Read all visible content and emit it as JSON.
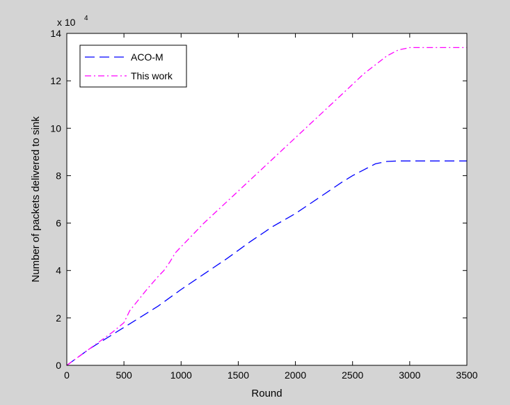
{
  "figure": {
    "background": "#d4d4d4",
    "axes_background": "#ffffff"
  },
  "chart_data": {
    "type": "line",
    "title": "",
    "xlabel": "Round",
    "ylabel": "Number of packets delivered to sink",
    "y_exponent_label": "x 10",
    "y_exponent": "4",
    "xlim": [
      0,
      3500
    ],
    "ylim": [
      0,
      14
    ],
    "xticks": [
      0,
      500,
      1000,
      1500,
      2000,
      2500,
      3000,
      3500
    ],
    "yticks": [
      0,
      2,
      4,
      6,
      8,
      10,
      12,
      14
    ],
    "grid": false,
    "legend_position": "top-left",
    "series": [
      {
        "name": "ACO-M",
        "color": "#0000ff",
        "dash": "dashed",
        "x": [
          0,
          200,
          400,
          600,
          800,
          1000,
          1200,
          1400,
          1600,
          1800,
          2000,
          2200,
          2400,
          2500,
          2600,
          2700,
          2800,
          2900,
          3000,
          3200,
          3500
        ],
        "y": [
          0,
          0.7,
          1.3,
          1.9,
          2.5,
          3.2,
          3.85,
          4.5,
          5.2,
          5.85,
          6.4,
          7.05,
          7.7,
          8.0,
          8.25,
          8.5,
          8.6,
          8.62,
          8.62,
          8.62,
          8.62
        ]
      },
      {
        "name": "This work",
        "color": "#ff00ff",
        "dash": "dashdot",
        "x": [
          0,
          200,
          400,
          500,
          550,
          600,
          700,
          800,
          850,
          900,
          950,
          1000,
          1100,
          1200,
          1400,
          1600,
          1800,
          2000,
          2200,
          2400,
          2600,
          2800,
          2900,
          3000,
          3200,
          3500
        ],
        "y": [
          0,
          0.7,
          1.4,
          1.8,
          2.3,
          2.6,
          3.2,
          3.75,
          4.0,
          4.35,
          4.75,
          5.0,
          5.5,
          6.0,
          6.9,
          7.8,
          8.7,
          9.6,
          10.5,
          11.4,
          12.3,
          13.05,
          13.3,
          13.4,
          13.4,
          13.4
        ]
      }
    ]
  }
}
